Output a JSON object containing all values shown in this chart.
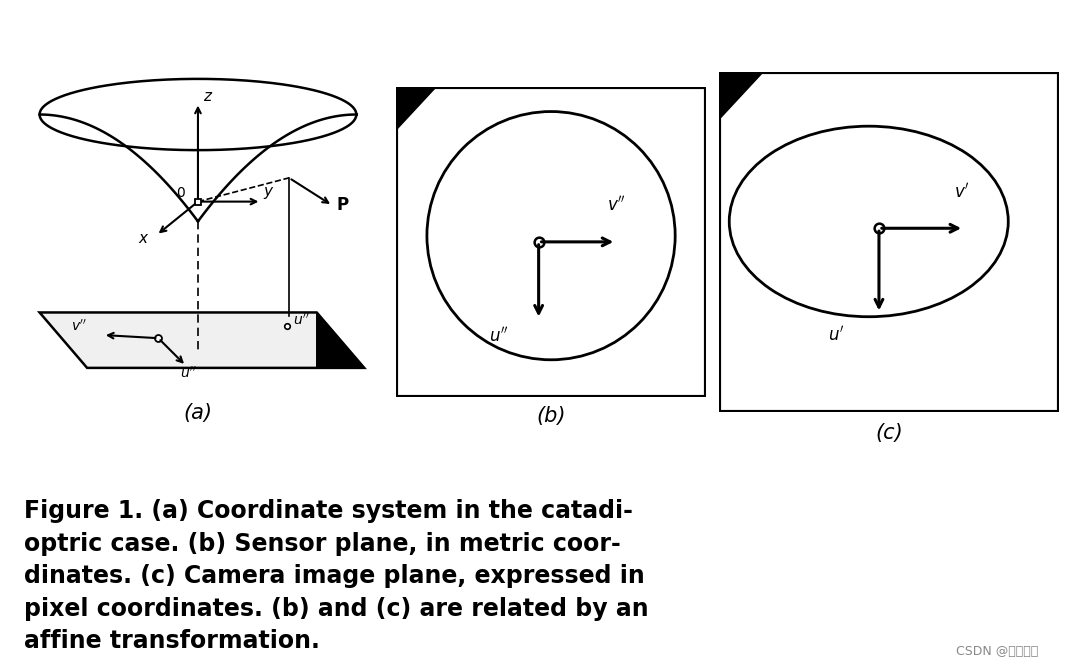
{
  "bg_color": "#ffffff",
  "fig_width": 10.7,
  "fig_height": 6.7,
  "caption_fontsize": 17,
  "watermark": "CSDN @宛如新生",
  "watermark_fontsize": 9,
  "label_a": "(a)",
  "label_b": "(b)",
  "label_c": "(c)"
}
